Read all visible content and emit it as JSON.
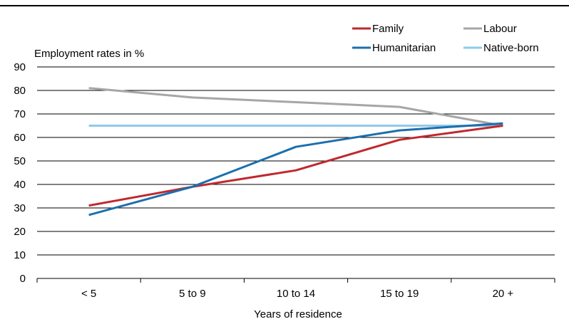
{
  "chart_data": {
    "type": "line",
    "title": "",
    "ylabel": "Employment rates in %",
    "xlabel": "Years of residence",
    "categories": [
      "< 5",
      "5 to 9",
      "10 to 14",
      "15 to 19",
      "20 +"
    ],
    "ylim": [
      0,
      90
    ],
    "yticks": [
      0,
      10,
      20,
      30,
      40,
      50,
      60,
      70,
      80,
      90
    ],
    "grid": "horizontal",
    "legend_position": "top-right",
    "series": [
      {
        "name": "Family",
        "color": "#c0282d",
        "values": [
          31,
          39,
          46,
          59,
          65
        ]
      },
      {
        "name": "Labour",
        "color": "#a6a6a6",
        "values": [
          81,
          77,
          75,
          73,
          65
        ]
      },
      {
        "name": "Humanitarian",
        "color": "#1b6fad",
        "values": [
          27,
          39,
          56,
          63,
          66
        ]
      },
      {
        "name": "Native-born",
        "color": "#8fc9ea",
        "values": [
          65,
          65,
          65,
          65,
          65
        ]
      }
    ]
  }
}
